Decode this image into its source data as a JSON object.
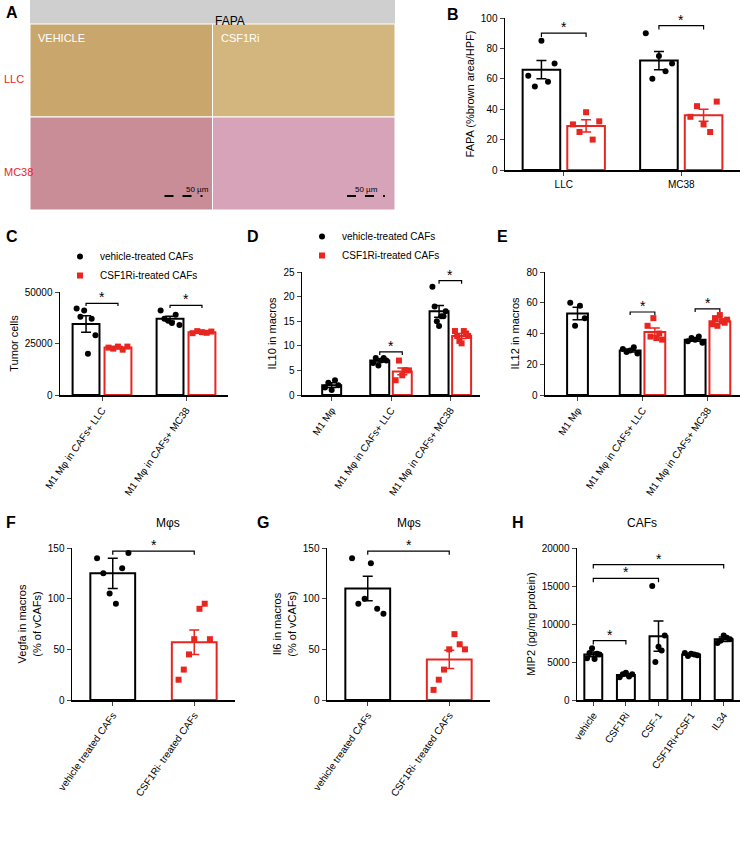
{
  "image_panel": {
    "panel": "A",
    "header": "FAPA",
    "columns": [
      "VEHICLE",
      "CSF1Ri"
    ],
    "rows": [
      "LLC",
      "MC38"
    ],
    "scale_bar": "50 µm"
  },
  "chart_data": [
    {
      "panel": "B",
      "type": "bar",
      "ylabel": "FAPA (%brown area/HPF)",
      "categories": [
        "LLC",
        "MC38"
      ],
      "series": [
        {
          "color": "#000000",
          "marker": "circle",
          "values": [
            66,
            72
          ],
          "error": [
            6,
            6
          ],
          "points": [
            [
              62,
              55,
              85,
              58,
              70
            ],
            [
              90,
              60,
              75,
              65,
              70
            ]
          ]
        },
        {
          "color": "#e8251f",
          "marker": "square",
          "values": [
            29,
            36
          ],
          "error": [
            4,
            4
          ],
          "points": [
            [
              30,
              25,
              38,
              20,
              32
            ],
            [
              35,
              42,
              30,
              25,
              45
            ]
          ]
        }
      ],
      "ylim": [
        0,
        100
      ],
      "yticks": [
        0,
        20,
        40,
        60,
        80,
        100
      ],
      "significance": [
        {
          "from": [
            "LLC",
            0
          ],
          "to": [
            "LLC",
            1
          ],
          "label": "*"
        },
        {
          "from": [
            "MC38",
            0
          ],
          "to": [
            "MC38",
            1
          ],
          "label": "*"
        }
      ]
    },
    {
      "panel": "C",
      "type": "bar",
      "ylabel": "Tumor cells",
      "legend": "top",
      "categories": [
        "M1 Mφ in CAFs+ LLC",
        "M1 Mφ in CAFs+ MC38"
      ],
      "series": [
        {
          "name": "vehicle-treated CAFs",
          "color": "#000000",
          "marker": "circle",
          "values": [
            34500,
            37000
          ],
          "error": [
            4000,
            1200
          ],
          "points": [
            [
              42000,
              38000,
              41000,
              20000,
              37000,
              29000
            ],
            [
              41000,
              37000,
              36000,
              35000,
              39000,
              34000
            ]
          ]
        },
        {
          "name": "CSF1Ri-treated CAFs",
          "color": "#e8251f",
          "marker": "square",
          "values": [
            23000,
            30500
          ],
          "error": [
            500,
            300
          ],
          "points": [
            [
              23000,
              22500,
              23500,
              22000,
              23500
            ],
            [
              30000,
              31000,
              30500,
              30200,
              30800
            ]
          ]
        }
      ],
      "ylim": [
        0,
        50000
      ],
      "yticks": [
        0,
        25000,
        50000
      ],
      "significance": [
        {
          "from": [
            "M1 Mφ in CAFs+ LLC",
            0
          ],
          "to": [
            "M1 Mφ in CAFs+ LLC",
            1
          ],
          "label": "*"
        },
        {
          "from": [
            "M1 Mφ in CAFs+ MC38",
            0
          ],
          "to": [
            "M1 Mφ in CAFs+ MC38",
            1
          ],
          "label": "*"
        }
      ]
    },
    {
      "panel": "D",
      "type": "bar",
      "ylabel": "IL10 in macros",
      "legend": "top",
      "categories": [
        "M1 Mφ",
        "M1 Mφ in CAFs+ LLC",
        "M1 Mφ in CAFs+ MC38"
      ],
      "series": [
        {
          "name": "vehicle-treated CAFs",
          "color": "#000000",
          "marker": "circle",
          "values": [
            2,
            7,
            17
          ],
          "error": [
            0.5,
            0.3,
            1.2
          ],
          "points": [
            [
              1.5,
              2.5,
              1,
              3,
              2
            ],
            [
              6.5,
              7.5,
              6,
              7,
              7.5,
              7
            ],
            [
              22,
              18,
              15,
              14,
              16,
              16,
              17
            ]
          ]
        },
        {
          "name": "CSF1Ri-treated CAFs",
          "color": "#e8251f",
          "marker": "square",
          "values": [
            null,
            4.8,
            12
          ],
          "error": [
            null,
            0.7,
            0.5
          ],
          "points": [
            null,
            [
              3,
              7,
              4,
              5,
              5
            ],
            [
              13,
              12,
              11,
              10.5,
              13,
              12.5,
              12
            ]
          ]
        }
      ],
      "ylim": [
        0,
        25
      ],
      "yticks": [
        0,
        5,
        10,
        15,
        20,
        25
      ],
      "significance": [
        {
          "from": [
            "M1 Mφ in CAFs+ LLC",
            0
          ],
          "to": [
            "M1 Mφ in CAFs+ LLC",
            1
          ],
          "label": "*"
        },
        {
          "from": [
            "M1 Mφ in CAFs+ MC38",
            0
          ],
          "to": [
            "M1 Mφ in CAFs+ MC38",
            1
          ],
          "label": "*"
        }
      ]
    },
    {
      "panel": "E",
      "type": "bar",
      "ylabel": "IL12 in macros",
      "categories": [
        "M1 Mφ",
        "M1 Mφ in CAFs+ LLC",
        "M1 Mφ in CAFs+ MC38"
      ],
      "series": [
        {
          "color": "#000000",
          "marker": "circle",
          "values": [
            53,
            29,
            36
          ],
          "error": [
            4,
            1,
            1
          ],
          "points": [
            [
              60,
              45,
              58,
              50
            ],
            [
              30,
              28,
              29,
              31,
              27
            ],
            [
              35,
              37,
              36,
              38,
              34
            ]
          ]
        },
        {
          "color": "#e8251f",
          "marker": "square",
          "values": [
            null,
            41,
            48
          ],
          "error": [
            null,
            2.5,
            1.5
          ],
          "points": [
            null,
            [
              45,
              38,
              50,
              37,
              40,
              36
            ],
            [
              46,
              50,
              45,
              52,
              48,
              47,
              49
            ]
          ]
        }
      ],
      "ylim": [
        0,
        80
      ],
      "yticks": [
        0,
        20,
        40,
        60,
        80
      ],
      "significance": [
        {
          "from": [
            "M1 Mφ in CAFs+ LLC",
            0
          ],
          "to": [
            "M1 Mφ in CAFs+ LLC",
            1
          ],
          "label": "*"
        },
        {
          "from": [
            "M1 Mφ in CAFs+ MC38",
            0
          ],
          "to": [
            "M1 Mφ in CAFs+ MC38",
            1
          ],
          "label": "*"
        }
      ]
    },
    {
      "panel": "F",
      "type": "bar",
      "title": "Mφs",
      "ylabel": [
        "Vegfa in macros",
        "(% of vCAFs)"
      ],
      "categories": [
        "vehicle treated CAFs",
        "CSF1Ri- treated CAFs"
      ],
      "series": [
        {
          "color": "#000000",
          "marker": "circle",
          "values": [
            125,
            null
          ],
          "error": [
            15,
            null
          ],
          "points": [
            [
              140,
              125,
              105,
              95,
              130,
              145
            ],
            null
          ]
        },
        {
          "color": "#e8251f",
          "marker": "square",
          "values": [
            null,
            57
          ],
          "error": [
            null,
            12
          ],
          "points": [
            null,
            [
              20,
              30,
              45,
              60,
              90,
              95,
              60
            ]
          ]
        }
      ],
      "ylim": [
        0,
        150
      ],
      "yticks": [
        0,
        50,
        100,
        150
      ],
      "significance": [
        {
          "from": [
            "vehicle treated CAFs",
            0
          ],
          "to": [
            "CSF1Ri- treated CAFs",
            1
          ],
          "label": "*"
        }
      ]
    },
    {
      "panel": "G",
      "type": "bar",
      "title": "Mφs",
      "ylabel": [
        "Il6 in macros",
        "(% of vCAFs)"
      ],
      "categories": [
        "vehicle treated CAFs",
        "CSF1Ri- treated CAFs"
      ],
      "series": [
        {
          "color": "#000000",
          "marker": "circle",
          "values": [
            110,
            null
          ],
          "error": [
            12,
            null
          ],
          "points": [
            [
              140,
              95,
              100,
              135,
              90,
              85
            ],
            null
          ]
        },
        {
          "color": "#e8251f",
          "marker": "square",
          "values": [
            null,
            40
          ],
          "error": [
            null,
            9
          ],
          "points": [
            null,
            [
              10,
              20,
              30,
              50,
              65,
              55,
              50
            ]
          ]
        }
      ],
      "ylim": [
        0,
        150
      ],
      "yticks": [
        0,
        50,
        100,
        150
      ],
      "significance": [
        {
          "from": [
            "vehicle treated CAFs",
            0
          ],
          "to": [
            "CSF1Ri- treated CAFs",
            1
          ],
          "label": "*"
        }
      ]
    },
    {
      "panel": "H",
      "type": "bar",
      "title": "CAFs",
      "ylabel": "MIP2 (pg/mg protein)",
      "categories": [
        "vehicle",
        "CSF1Ri",
        "CSF-1",
        "CSF1Ri+CSF1",
        "IL34"
      ],
      "series": [
        {
          "color": "#000000",
          "marker": "circle",
          "values": [
            6000,
            3300,
            8400,
            6000,
            8000
          ],
          "error": [
            300,
            150,
            2000,
            150,
            300
          ],
          "points": [
            [
              5500,
              6200,
              6800,
              5400,
              6100,
              6000
            ],
            [
              3000,
              3400,
              3600,
              3100,
              3400
            ],
            [
              15000,
              5000,
              7000,
              6500,
              8500
            ],
            [
              6200,
              5800,
              6100,
              6000,
              5900
            ],
            [
              7500,
              7800,
              8500,
              8200,
              8000
            ]
          ]
        }
      ],
      "ylim": [
        0,
        20000
      ],
      "yticks": [
        0,
        5000,
        10000,
        15000,
        20000
      ],
      "significance": [
        {
          "from": [
            "vehicle",
            0
          ],
          "to": [
            "CSF1Ri",
            0
          ],
          "label": "*"
        },
        {
          "from": [
            "vehicle",
            0
          ],
          "to": [
            "CSF-1",
            0
          ],
          "label": "*"
        },
        {
          "from": [
            "vehicle",
            0
          ],
          "to": [
            "IL34",
            0
          ],
          "label": "*"
        }
      ]
    }
  ]
}
